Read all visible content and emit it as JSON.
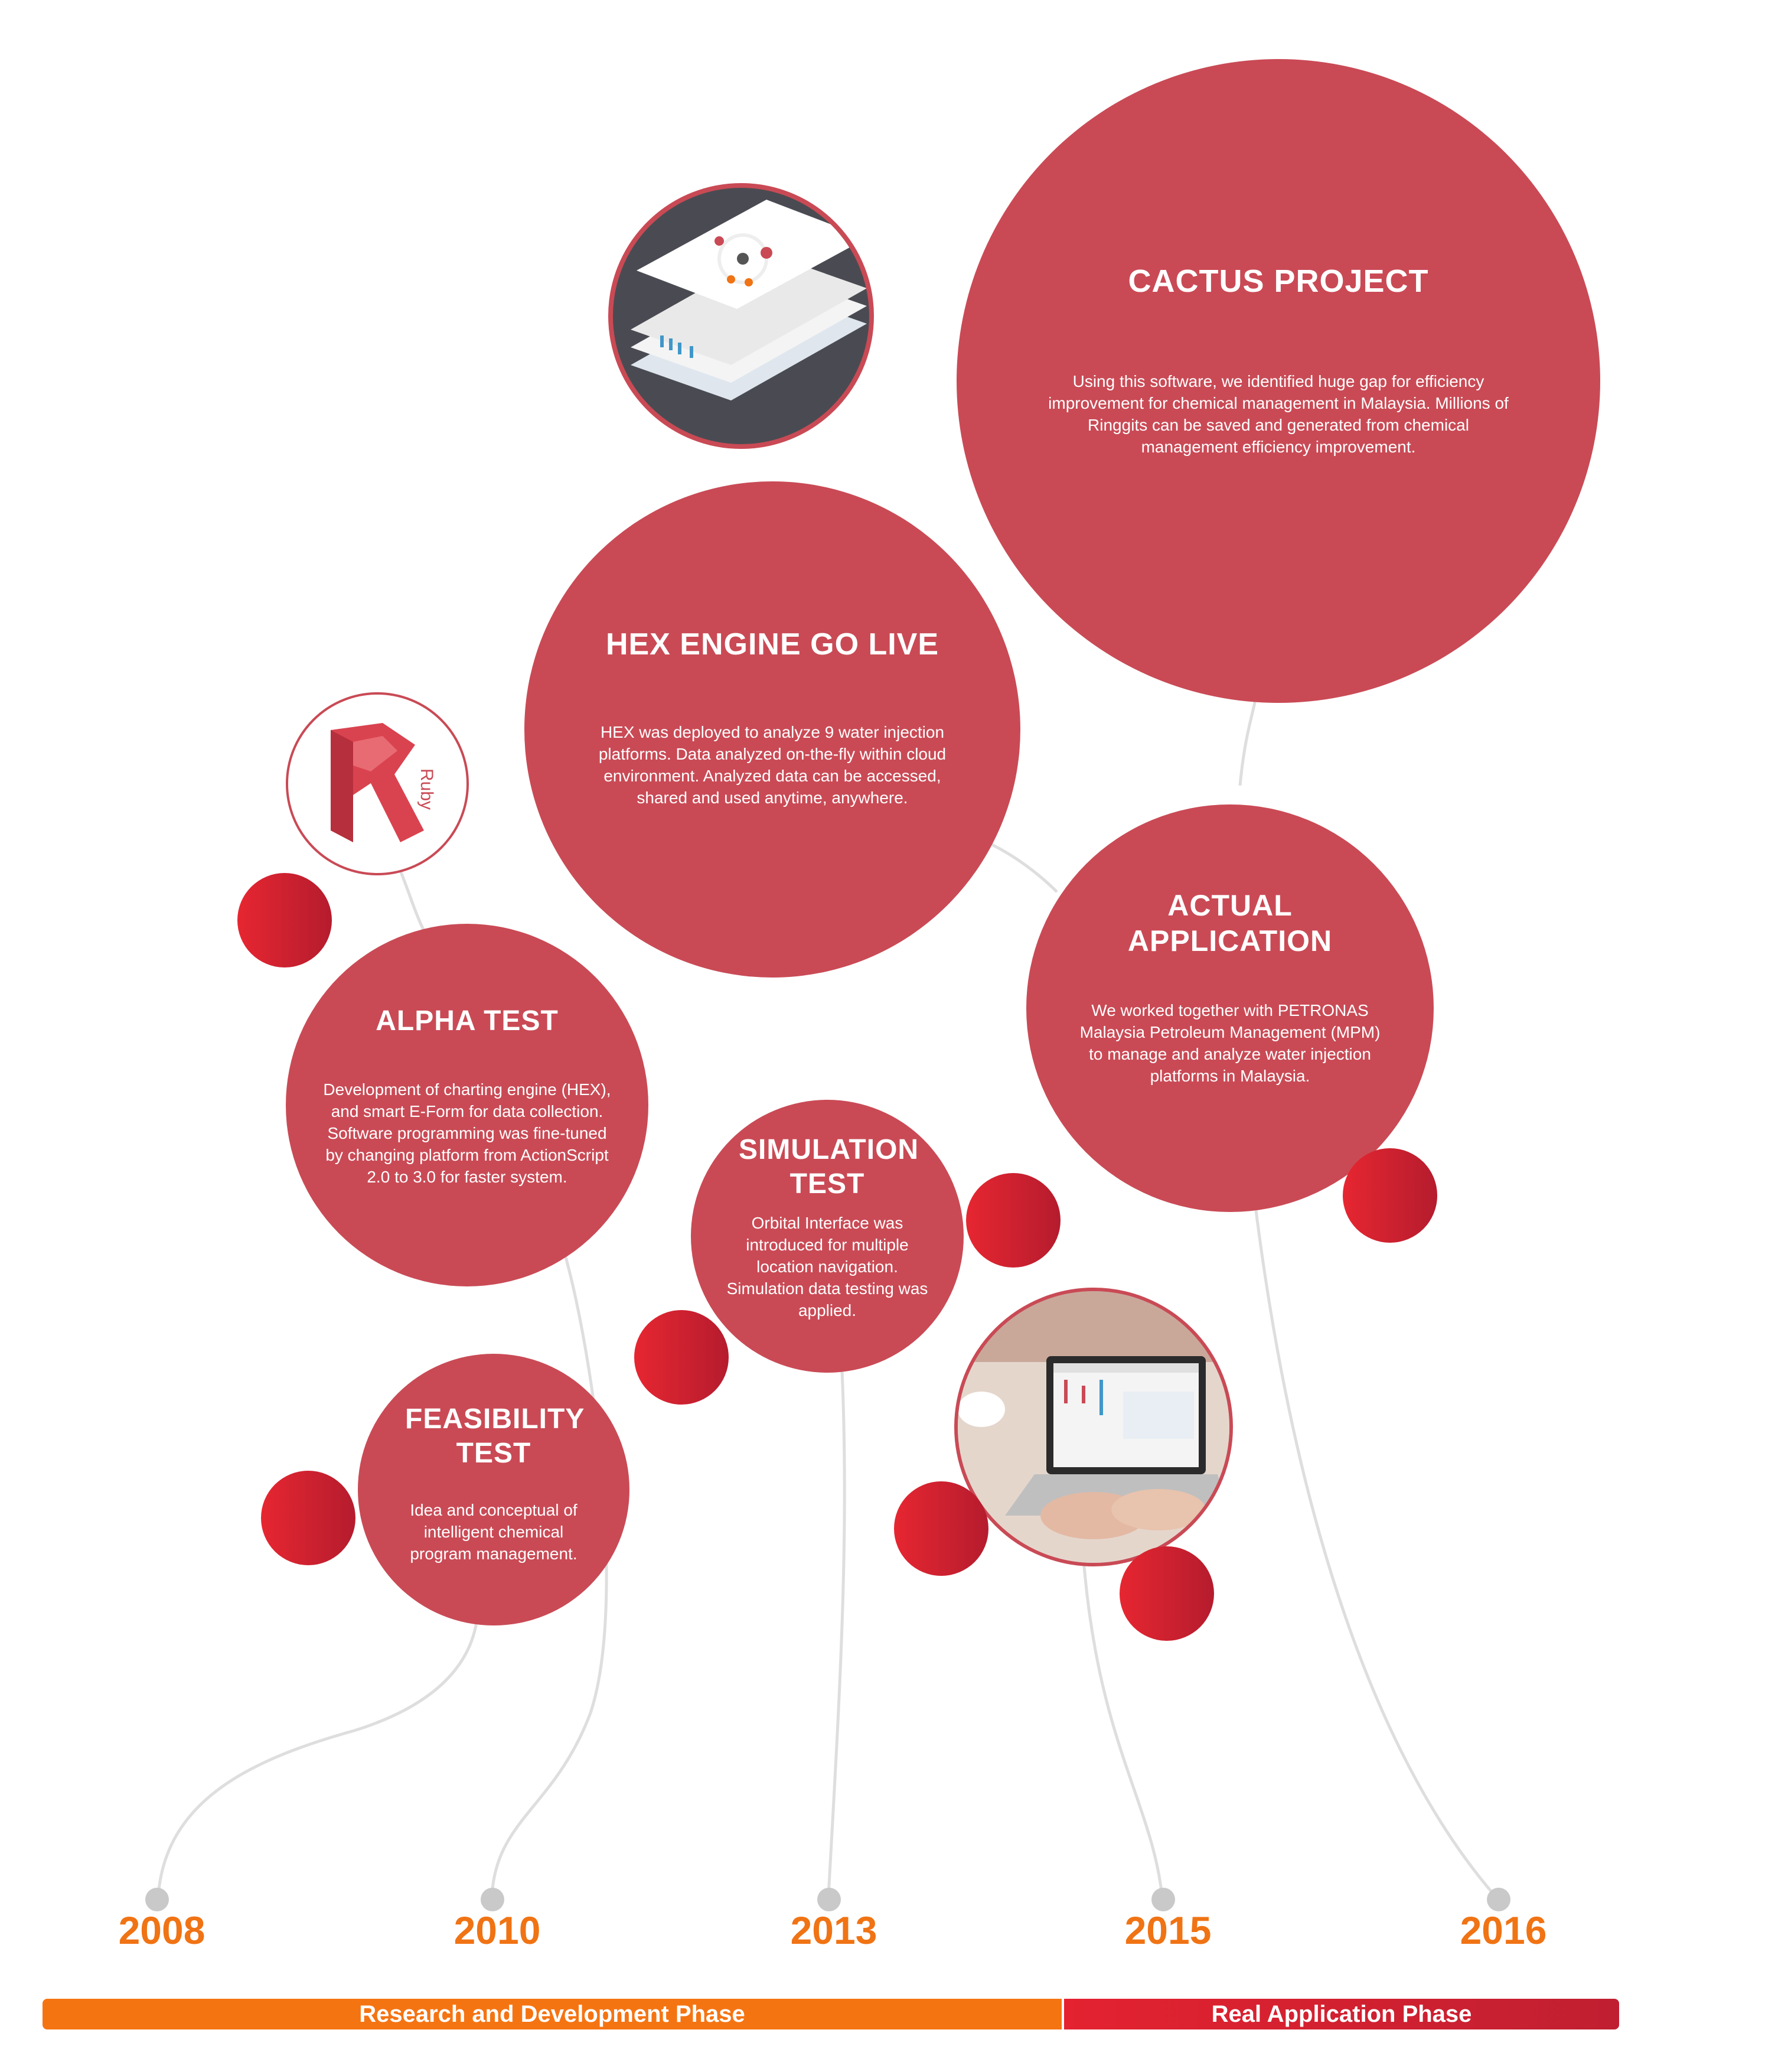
{
  "milestones": {
    "cactus": {
      "title": "CACTUS PROJECT",
      "desc": "Using this software, we identified huge gap for efficiency improvement for chemical management in Malaysia. Millions of Ringgits can be saved and generated from chemical management efficiency improvement."
    },
    "hex": {
      "title": "HEX ENGINE GO LIVE",
      "desc": "HEX was deployed to analyze 9 water injection platforms.  Data  analyzed on-the-fly within cloud environment. Analyzed data can be accessed, shared and used anytime, anywhere."
    },
    "actual": {
      "title": "ACTUAL APPLICATION",
      "desc": "We worked together with PETRONAS Malaysia Petroleum Management (MPM) to manage and analyze water injection platforms in Malaysia."
    },
    "alpha": {
      "title": "ALPHA TEST",
      "desc": "Development of charting engine (HEX), and smart E-Form for data collection. Software programming was fine-tuned by changing platform from ActionScript 2.0 to 3.0 for faster system."
    },
    "simulation": {
      "title": "SIMULATION TEST",
      "desc": "Orbital Interface was introduced for multiple location navigation. Simulation data testing was applied."
    },
    "feasibility": {
      "title": "FEASIBILITY TEST",
      "desc": "Idea and conceptual of intelligent chemical program management."
    }
  },
  "logo": {
    "text": "Ruby"
  },
  "timeline": {
    "years": [
      "2008",
      "2010",
      "2013",
      "2015",
      "2016"
    ],
    "phases": {
      "rnd": "Research and Development Phase",
      "real": "Real Application Phase"
    }
  },
  "colors": {
    "bubble": "#c94a55",
    "accent_red": "#e62631",
    "year_orange": "#f07314",
    "phase_orange": "#f57412",
    "connector_gray": "#d9d9d9"
  }
}
